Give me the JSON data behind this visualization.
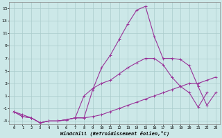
{
  "xlabel": "Windchill (Refroidissement éolien,°C)",
  "background_color": "#cce8e8",
  "grid_color": "#aacccc",
  "line_color": "#993399",
  "xlim": [
    -0.5,
    23.5
  ],
  "ylim": [
    -3.5,
    16.0
  ],
  "xticks": [
    0,
    1,
    2,
    3,
    4,
    5,
    6,
    7,
    8,
    9,
    10,
    11,
    12,
    13,
    14,
    15,
    16,
    17,
    18,
    19,
    20,
    21,
    22,
    23
  ],
  "yticks": [
    -3,
    -1,
    1,
    3,
    5,
    7,
    9,
    11,
    13,
    15
  ],
  "series1_x": [
    0,
    1,
    2,
    3,
    4,
    5,
    6,
    7,
    8,
    9,
    10,
    11,
    12,
    13,
    14,
    15,
    16,
    17,
    18,
    19,
    20,
    21,
    22,
    23
  ],
  "series1_y": [
    -1.5,
    -2.3,
    -2.5,
    -3.3,
    -3.0,
    -3.0,
    -2.8,
    -2.5,
    -2.5,
    2.0,
    5.5,
    7.5,
    10.0,
    12.5,
    14.7,
    15.3,
    10.5,
    7.0,
    7.0,
    6.8,
    5.8,
    2.5,
    -0.5,
    1.5
  ],
  "series2_x": [
    0,
    1,
    2,
    3,
    4,
    5,
    6,
    7,
    8,
    9,
    10,
    11,
    12,
    13,
    14,
    15,
    16,
    17,
    18,
    19,
    20,
    21,
    22,
    23
  ],
  "series2_y": [
    -1.5,
    -2.3,
    -2.5,
    -3.3,
    -3.0,
    -3.0,
    -2.8,
    -2.5,
    1.0,
    2.2,
    3.0,
    3.5,
    4.5,
    5.5,
    6.3,
    7.0,
    7.0,
    6.0,
    4.0,
    2.5,
    1.5,
    -0.8,
    1.5,
    null
  ],
  "series3_x": [
    0,
    1,
    2,
    3,
    4,
    5,
    6,
    7,
    8,
    9,
    10,
    11,
    12,
    13,
    14,
    15,
    16,
    17,
    18,
    19,
    20,
    21,
    22,
    23
  ],
  "series3_y": [
    -1.5,
    -2.0,
    -2.5,
    -3.3,
    -3.0,
    -3.0,
    -2.8,
    -2.5,
    -2.5,
    -2.3,
    -2.0,
    -1.5,
    -1.0,
    -0.5,
    0.0,
    0.5,
    1.0,
    1.5,
    2.0,
    2.5,
    3.0,
    3.0,
    3.5,
    4.0
  ]
}
